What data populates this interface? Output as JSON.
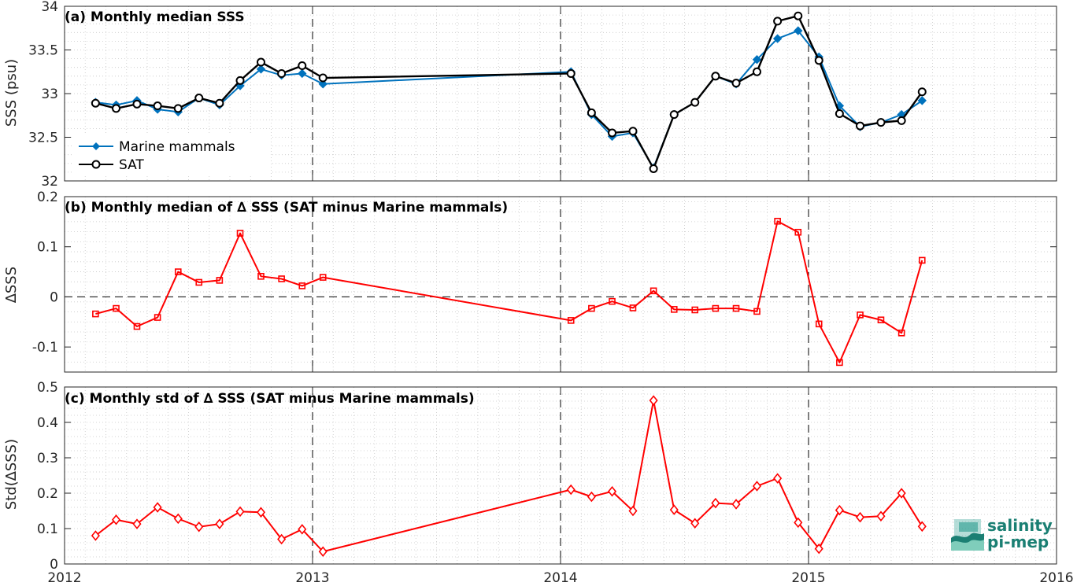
{
  "chart_data": [
    {
      "type": "line",
      "panel": "a",
      "title": "(a) Monthly median SSS",
      "ylabel": "SSS (psu)",
      "xlim": [
        2012,
        2016
      ],
      "ylim": [
        32,
        34
      ],
      "yticks": [
        32,
        32.5,
        33,
        33.5,
        34
      ],
      "ytick_labels": [
        "32",
        "32.5",
        "33",
        "33.5",
        "34"
      ],
      "grid": true,
      "legend": "bottom-left",
      "series": [
        {
          "name": "Marine mammals",
          "color": "#0072bd",
          "marker": "diamond",
          "x": [
            2012.125,
            2012.208,
            2012.292,
            2012.375,
            2012.458,
            2012.542,
            2012.625,
            2012.708,
            2012.792,
            2012.875,
            2012.958,
            2013.042,
            2014.042,
            2014.125,
            2014.208,
            2014.292,
            2014.375,
            2014.458,
            2014.542,
            2014.625,
            2014.708,
            2014.792,
            2014.875,
            2014.958,
            2015.042,
            2015.125,
            2015.208,
            2015.292,
            2015.375,
            2015.458
          ],
          "y": [
            32.9,
            32.87,
            32.92,
            32.82,
            32.79,
            32.95,
            32.87,
            33.09,
            33.28,
            33.21,
            33.23,
            33.11,
            33.25,
            32.76,
            32.51,
            32.55,
            32.15,
            32.76,
            32.9,
            33.2,
            33.11,
            33.39,
            33.63,
            33.72,
            33.42,
            32.86,
            32.62,
            32.67,
            32.76,
            32.92
          ]
        },
        {
          "name": "SAT",
          "color": "#000000",
          "marker": "circle",
          "x": [
            2012.125,
            2012.208,
            2012.292,
            2012.375,
            2012.458,
            2012.542,
            2012.625,
            2012.708,
            2012.792,
            2012.875,
            2012.958,
            2013.042,
            2014.042,
            2014.125,
            2014.208,
            2014.292,
            2014.375,
            2014.458,
            2014.542,
            2014.625,
            2014.708,
            2014.792,
            2014.875,
            2014.958,
            2015.042,
            2015.125,
            2015.208,
            2015.292,
            2015.375,
            2015.458
          ],
          "y": [
            32.89,
            32.83,
            32.88,
            32.86,
            32.83,
            32.95,
            32.89,
            33.15,
            33.36,
            33.23,
            33.32,
            33.18,
            33.23,
            32.78,
            32.55,
            32.57,
            32.14,
            32.76,
            32.9,
            33.2,
            33.12,
            33.25,
            33.83,
            33.89,
            33.38,
            32.77,
            32.63,
            32.67,
            32.69,
            33.02
          ]
        }
      ]
    },
    {
      "type": "line",
      "panel": "b",
      "title": "(b) Monthly median of ∆ SSS (SAT minus Marine mammals)",
      "ylabel": "∆SSS",
      "xlim": [
        2012,
        2016
      ],
      "ylim": [
        -0.15,
        0.2
      ],
      "yticks": [
        -0.1,
        0,
        0.1,
        0.2
      ],
      "ytick_labels": [
        "-0.1",
        "0",
        "0.1",
        "0.2"
      ],
      "zero_line": true,
      "grid": true,
      "series": [
        {
          "color": "#ff0000",
          "marker": "square",
          "x": [
            2012.125,
            2012.208,
            2012.292,
            2012.375,
            2012.458,
            2012.542,
            2012.625,
            2012.708,
            2012.792,
            2012.875,
            2012.958,
            2013.042,
            2014.042,
            2014.125,
            2014.208,
            2014.292,
            2014.375,
            2014.458,
            2014.542,
            2014.625,
            2014.708,
            2014.792,
            2014.875,
            2014.958,
            2015.042,
            2015.125,
            2015.208,
            2015.292,
            2015.375,
            2015.458
          ],
          "y": [
            -0.034,
            -0.023,
            -0.059,
            -0.041,
            0.05,
            0.029,
            0.033,
            0.127,
            0.041,
            0.036,
            0.022,
            0.039,
            -0.047,
            -0.023,
            -0.009,
            -0.022,
            0.012,
            -0.025,
            -0.026,
            -0.023,
            -0.023,
            -0.029,
            0.151,
            0.129,
            -0.054,
            -0.131,
            -0.036,
            -0.046,
            -0.072,
            0.073
          ]
        }
      ]
    },
    {
      "type": "line",
      "panel": "c",
      "title": "(c) Monthly std of ∆ SSS (SAT minus Marine mammals)",
      "ylabel": "Std(∆SSS)",
      "xlim": [
        2012,
        2016
      ],
      "ylim": [
        0,
        0.5
      ],
      "yticks": [
        0,
        0.1,
        0.2,
        0.3,
        0.4,
        0.5
      ],
      "ytick_labels": [
        "0",
        "0.1",
        "0.2",
        "0.3",
        "0.4",
        "0.5"
      ],
      "xticks": [
        2012,
        2013,
        2014,
        2015,
        2016
      ],
      "xtick_labels": [
        "2012",
        "2013",
        "2014",
        "2015",
        "2016"
      ],
      "grid": true,
      "series": [
        {
          "color": "#ff0000",
          "marker": "diamond",
          "x": [
            2012.125,
            2012.208,
            2012.292,
            2012.375,
            2012.458,
            2012.542,
            2012.625,
            2012.708,
            2012.792,
            2012.875,
            2012.958,
            2013.042,
            2014.042,
            2014.125,
            2014.208,
            2014.292,
            2014.375,
            2014.458,
            2014.542,
            2014.625,
            2014.708,
            2014.792,
            2014.875,
            2014.958,
            2015.042,
            2015.125,
            2015.208,
            2015.292,
            2015.375,
            2015.458
          ],
          "y": [
            0.08,
            0.125,
            0.113,
            0.16,
            0.128,
            0.105,
            0.113,
            0.148,
            0.146,
            0.07,
            0.098,
            0.035,
            0.21,
            0.19,
            0.205,
            0.15,
            0.462,
            0.153,
            0.115,
            0.172,
            0.169,
            0.22,
            0.242,
            0.117,
            0.043,
            0.152,
            0.132,
            0.135,
            0.2,
            0.106
          ]
        }
      ]
    }
  ],
  "year_markers": [
    2013,
    2014,
    2015
  ],
  "logo": {
    "line1": "salinity",
    "line2": "pi-mep",
    "color": "#1a7f73"
  }
}
